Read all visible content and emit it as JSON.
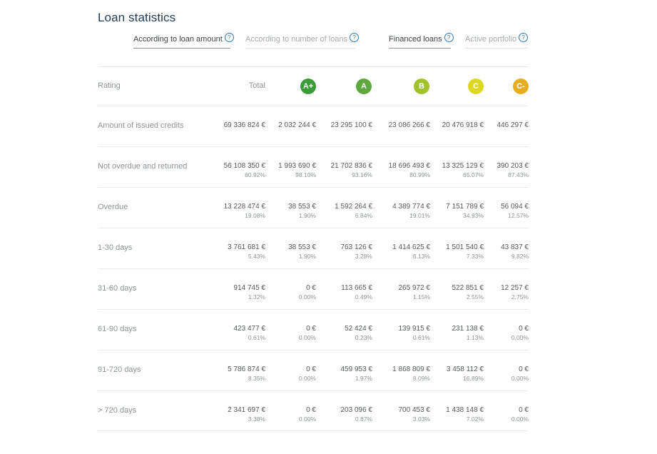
{
  "title": "Loan statistics",
  "tabs": [
    {
      "label": "According to loan amount",
      "help": "?",
      "active": true
    },
    {
      "label": "According to number of loans",
      "help": "?",
      "active": false
    },
    {
      "label": "Financed loans",
      "help": "?",
      "active": true
    },
    {
      "label": "Active portfolio",
      "help": "?",
      "active": false
    }
  ],
  "header": {
    "rating_label": "Rating",
    "total_label": "Total",
    "ratings": [
      {
        "label": "A+",
        "color": "#3d9a3a"
      },
      {
        "label": "A",
        "color": "#5fa83e"
      },
      {
        "label": "B",
        "color": "#a3c22a"
      },
      {
        "label": "C",
        "color": "#dcd81f"
      },
      {
        "label": "C-",
        "color": "#e6ad22"
      }
    ]
  },
  "rows": [
    {
      "label": "Amount of issued credits",
      "values": [
        "69 336 824 €",
        "2 032 244 €",
        "23 295 100 €",
        "23 086 266 €",
        "20 476 918 €",
        "446 297 €"
      ],
      "pcts": null
    },
    {
      "label": "Not overdue and returned",
      "values": [
        "56 108 350 €",
        "1 993 690 €",
        "21 702 836 €",
        "18 696 493 €",
        "13 325 129 €",
        "390 203 €"
      ],
      "pcts": [
        "80.92%",
        "98.10%",
        "93.16%",
        "80.99%",
        "65.07%",
        "87.43%"
      ]
    },
    {
      "label": "Overdue",
      "values": [
        "13 228 474 €",
        "38 553 €",
        "1 592 264 €",
        "4 389 774 €",
        "7 151 789 €",
        "56 094 €"
      ],
      "pcts": [
        "19.08%",
        "1.90%",
        "6.84%",
        "19.01%",
        "34.93%",
        "12.57%"
      ]
    },
    {
      "label": "1-30 days",
      "values": [
        "3 761 681 €",
        "38 553 €",
        "763 126 €",
        "1 414 625 €",
        "1 501 540 €",
        "43 837 €"
      ],
      "pcts": [
        "5.43%",
        "1.90%",
        "3.28%",
        "6.13%",
        "7.33%",
        "9.82%"
      ]
    },
    {
      "label": "31-60 days",
      "values": [
        "914 745 €",
        "0 €",
        "113 665 €",
        "265 972 €",
        "522 851 €",
        "12 257 €"
      ],
      "pcts": [
        "1.32%",
        "0.00%",
        "0.49%",
        "1.15%",
        "2.55%",
        "2.75%"
      ]
    },
    {
      "label": "61-90 days",
      "values": [
        "423 477 €",
        "0 €",
        "52 424 €",
        "139 915 €",
        "231 138 €",
        "0 €"
      ],
      "pcts": [
        "0.61%",
        "0.00%",
        "0.23%",
        "0.61%",
        "1.13%",
        "0.00%"
      ]
    },
    {
      "label": "91-720 days",
      "values": [
        "5 786 874 €",
        "0 €",
        "459 953 €",
        "1 868 809 €",
        "3 458 112 €",
        "0 €"
      ],
      "pcts": [
        "8.35%",
        "0.00%",
        "1.97%",
        "8.09%",
        "16.89%",
        "0.00%"
      ]
    },
    {
      "label": "> 720 days",
      "values": [
        "2 341 697 €",
        "0 €",
        "203 096 €",
        "700 453 €",
        "1 438 148 €",
        "0 €"
      ],
      "pcts": [
        "3.38%",
        "0.00%",
        "0.87%",
        "3.03%",
        "7.02%",
        "0.00%"
      ]
    }
  ]
}
